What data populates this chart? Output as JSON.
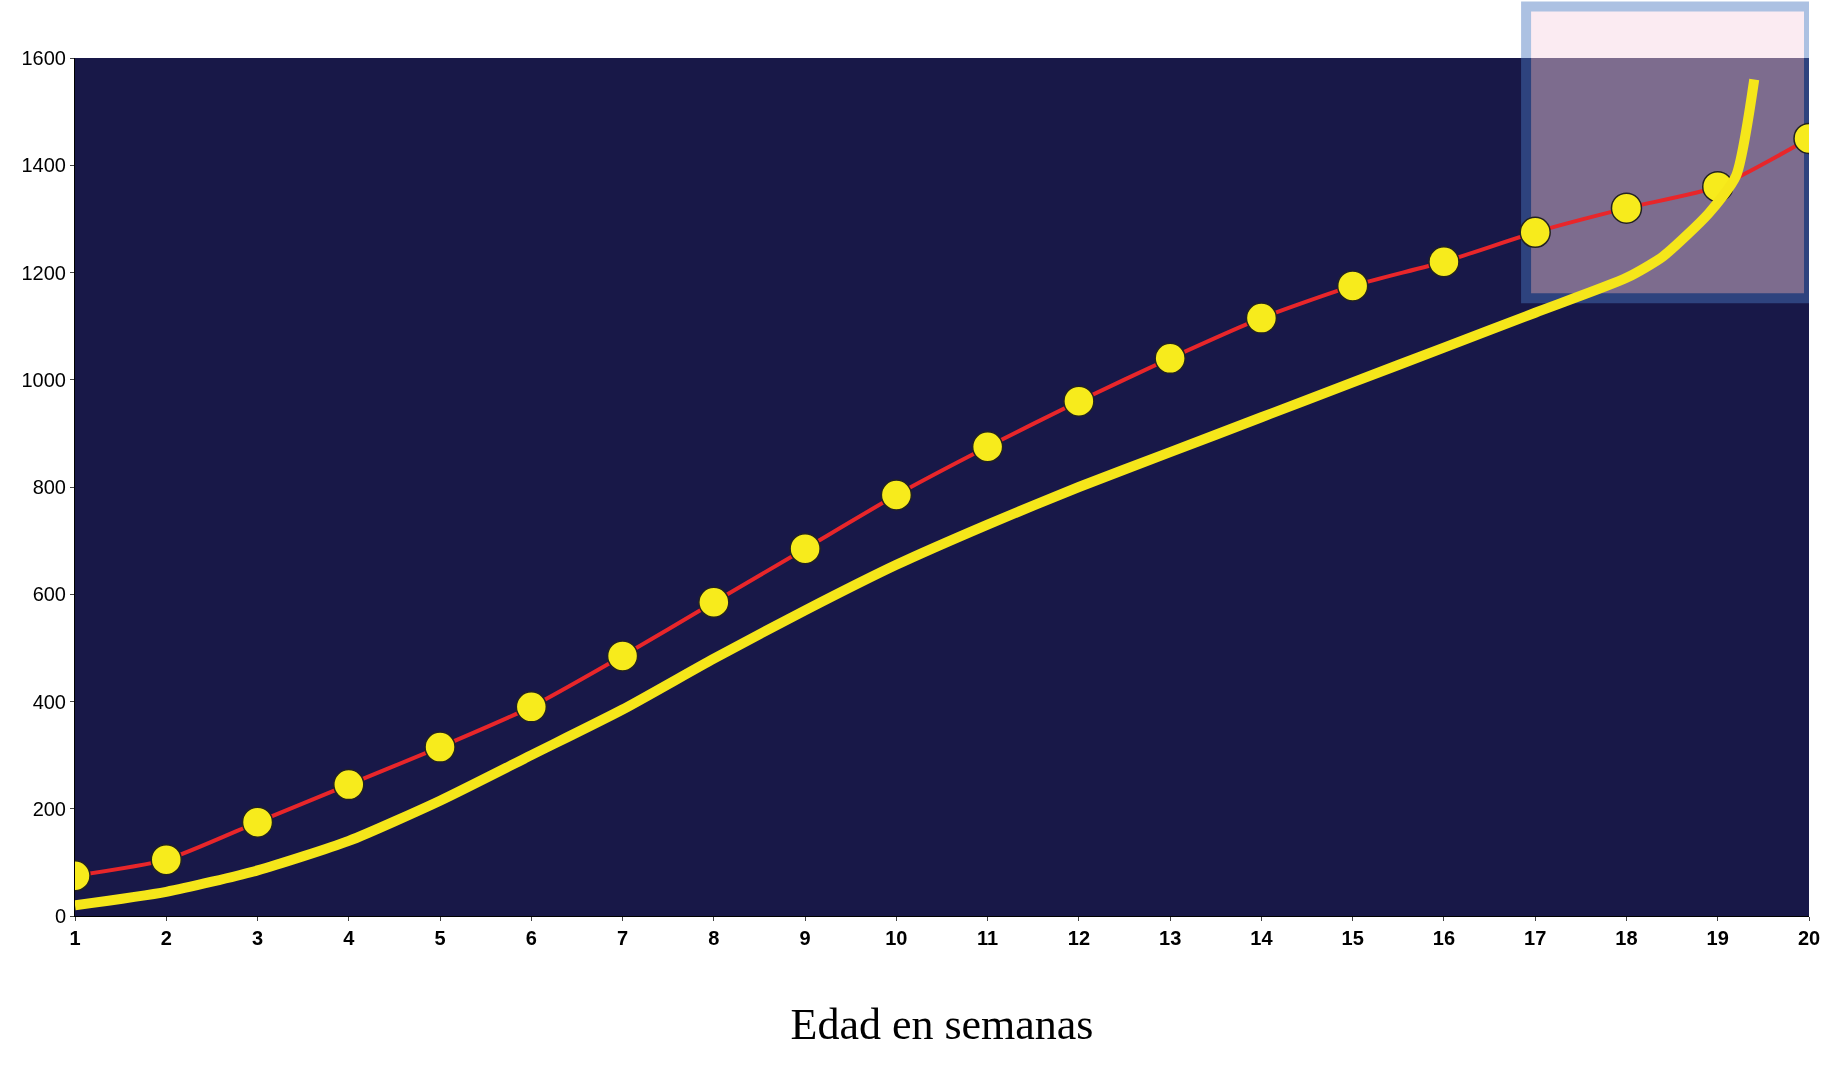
{
  "chart_data": {
    "type": "line",
    "xlabel": "Edad en semanas",
    "x": [
      1,
      2,
      3,
      4,
      5,
      6,
      7,
      8,
      9,
      10,
      11,
      12,
      13,
      14,
      15,
      16,
      17,
      18,
      19,
      20
    ],
    "series": [
      {
        "color": "#e8262a",
        "marker": "circle",
        "values": [
          75,
          105,
          175,
          245,
          315,
          390,
          485,
          585,
          685,
          785,
          875,
          960,
          1040,
          1115,
          1175,
          1220,
          1275,
          1320,
          1360,
          1450
        ]
      },
      {
        "color": "#f5e61a",
        "marker": "none",
        "x": [
          1,
          2,
          3,
          4,
          5,
          6,
          7,
          8,
          9,
          10,
          11,
          12,
          13,
          14,
          15,
          16,
          17,
          18,
          18.4,
          18.9,
          19.2,
          19.4
        ],
        "values": [
          20,
          45,
          85,
          140,
          215,
          300,
          385,
          480,
          570,
          655,
          730,
          800,
          865,
          930,
          995,
          1060,
          1125,
          1190,
          1230,
          1310,
          1380,
          1560
        ]
      }
    ],
    "xlim": [
      1,
      20
    ],
    "xticks": [
      1,
      2,
      3,
      4,
      5,
      6,
      7,
      8,
      9,
      10,
      11,
      12,
      13,
      14,
      15,
      16,
      17,
      18,
      19,
      20
    ],
    "ylim": [
      0,
      1600
    ],
    "yticks": [
      0,
      200,
      400,
      600,
      800,
      1000,
      1200,
      1400,
      1600
    ],
    "bands": [
      {
        "axis": "x",
        "from": 16.9,
        "to": 20,
        "color": "#f7d3e3"
      }
    ],
    "grid": false
  }
}
